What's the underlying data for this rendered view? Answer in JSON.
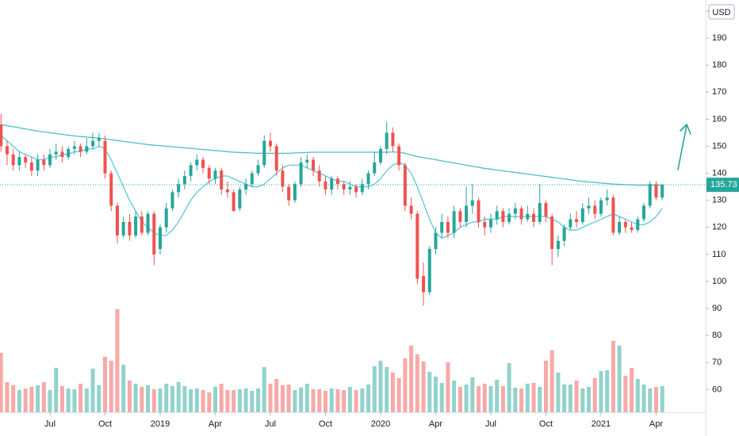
{
  "chart_data": {
    "type": "candlestick",
    "currency": "USD",
    "up_color": "#26a69a",
    "down_color": "#ef5350",
    "xlim": [
      -0.16,
      115.1
    ],
    "xticks": [
      {
        "value": 8,
        "label": "Jul"
      },
      {
        "value": 17,
        "label": "Oct"
      },
      {
        "value": 26,
        "label": "2019"
      },
      {
        "value": 35,
        "label": "Apr"
      },
      {
        "value": 44,
        "label": "Jul"
      },
      {
        "value": 53,
        "label": "Oct"
      },
      {
        "value": 62,
        "label": "2020"
      },
      {
        "value": 71,
        "label": "Apr"
      },
      {
        "value": 80,
        "label": "Jul"
      },
      {
        "value": 89,
        "label": "Oct"
      },
      {
        "value": 98,
        "label": "2021"
      },
      {
        "value": 107,
        "label": "Apr"
      }
    ],
    "ylim": [
      51.6,
      204.1
    ],
    "yticks": [
      60,
      70,
      80,
      90,
      100,
      110,
      120,
      130,
      140,
      150,
      160,
      170,
      180,
      190,
      200
    ],
    "open": [
      158,
      150,
      147,
      143,
      146,
      144,
      141,
      145,
      143,
      147,
      148,
      146,
      149,
      150,
      148,
      150,
      152,
      152,
      140,
      128,
      117,
      122,
      117,
      124,
      118,
      125,
      112,
      120,
      127,
      133,
      136,
      139,
      143,
      145,
      142,
      138,
      141,
      134,
      133,
      127,
      134,
      136,
      140,
      143,
      152,
      150,
      141,
      135,
      130,
      136,
      144,
      145,
      141,
      137,
      134,
      138,
      136,
      134,
      135,
      133,
      136,
      140,
      144,
      149,
      155,
      150,
      143,
      128,
      125,
      102,
      96,
      112,
      118,
      122,
      118,
      126,
      122,
      128,
      130,
      122,
      120,
      123,
      126,
      122,
      125,
      127,
      123,
      125,
      122,
      129,
      124,
      112,
      115,
      120,
      123,
      122,
      127,
      128,
      125,
      130,
      131,
      118,
      122,
      120,
      119,
      123,
      128,
      136,
      131
    ],
    "high": [
      162,
      152,
      149,
      148,
      147,
      146,
      147,
      147,
      149,
      151,
      150,
      150,
      152,
      151,
      153,
      155,
      155,
      154,
      141,
      129,
      124,
      125,
      126,
      126,
      126,
      126,
      121,
      129,
      134,
      138,
      141,
      144,
      147,
      146,
      143,
      142,
      142,
      137,
      134,
      135,
      138,
      141,
      145,
      154,
      155,
      151,
      143,
      136,
      137,
      146,
      147,
      146,
      143,
      139,
      139,
      139,
      137,
      137,
      136,
      138,
      141,
      148,
      150,
      159,
      157,
      151,
      144,
      131,
      126,
      107,
      113,
      120,
      125,
      124,
      128,
      127,
      135,
      136,
      131,
      124,
      125,
      128,
      127,
      127,
      129,
      128,
      128,
      127,
      136,
      130,
      125,
      117,
      121,
      125,
      126,
      129,
      131,
      130,
      131,
      134,
      132,
      124,
      123,
      122,
      124,
      129,
      137,
      137,
      136
    ],
    "low": [
      148,
      143,
      141,
      141,
      142,
      139,
      139,
      141,
      142,
      145,
      144,
      145,
      147,
      146,
      147,
      149,
      150,
      138,
      126,
      114,
      116,
      115,
      116,
      117,
      117,
      106,
      110,
      118,
      126,
      131,
      134,
      137,
      141,
      140,
      136,
      136,
      132,
      131,
      126,
      126,
      132,
      135,
      139,
      142,
      148,
      139,
      133,
      128,
      129,
      135,
      142,
      139,
      135,
      132,
      132,
      134,
      132,
      132,
      131,
      132,
      134,
      139,
      143,
      147,
      148,
      141,
      126,
      123,
      99,
      91,
      95,
      110,
      116,
      116,
      116,
      120,
      120,
      125,
      120,
      117,
      118,
      121,
      120,
      121,
      123,
      121,
      122,
      120,
      121,
      122,
      106,
      109,
      113,
      119,
      120,
      121,
      125,
      123,
      124,
      128,
      117,
      117,
      118,
      118,
      118,
      122,
      127,
      130,
      130
    ],
    "close": [
      150,
      147,
      143,
      146,
      144,
      141,
      145,
      143,
      147,
      148,
      146,
      149,
      150,
      148,
      150,
      152,
      153,
      140,
      128,
      117,
      122,
      117,
      124,
      118,
      125,
      110,
      120,
      127,
      133,
      136,
      139,
      143,
      145,
      142,
      138,
      141,
      134,
      133,
      126,
      134,
      136,
      140,
      143,
      152,
      150,
      141,
      135,
      130,
      136,
      144,
      145,
      141,
      137,
      134,
      138,
      136,
      134,
      135,
      133,
      136,
      140,
      144,
      149,
      155,
      150,
      143,
      128,
      125,
      101,
      96,
      112,
      118,
      122,
      118,
      126,
      122,
      128,
      130,
      122,
      120,
      123,
      126,
      122,
      125,
      127,
      123,
      125,
      122,
      129,
      124,
      112,
      115,
      120,
      123,
      122,
      127,
      128,
      125,
      130,
      131,
      118,
      122,
      120,
      119,
      123,
      128,
      136,
      131,
      135.73
    ],
    "volume": [
      7.5,
      3.8,
      3.4,
      2.8,
      3.0,
      3.2,
      3.4,
      3.8,
      2.8,
      5.6,
      3.3,
      3.0,
      2.9,
      3.6,
      3.0,
      5.5,
      3.4,
      7.0,
      6.5,
      13.0,
      6.0,
      4.0,
      3.6,
      3.2,
      3.4,
      2.9,
      3.0,
      3.6,
      3.3,
      3.8,
      3.3,
      2.9,
      3.0,
      2.8,
      2.5,
      3.2,
      3.6,
      2.8,
      2.8,
      2.9,
      3.0,
      2.7,
      3.0,
      5.7,
      3.6,
      4.2,
      3.4,
      3.5,
      2.8,
      3.1,
      3.6,
      2.9,
      2.9,
      2.7,
      3.0,
      2.9,
      2.8,
      3.2,
      2.8,
      3.0,
      3.5,
      5.8,
      6.5,
      5.7,
      5.0,
      4.3,
      6.8,
      8.4,
      7.3,
      6.4,
      5.1,
      4.5,
      3.7,
      6.3,
      4.0,
      3.2,
      3.5,
      4.4,
      3.3,
      3.6,
      3.3,
      4.1,
      3.3,
      6.2,
      3.1,
      3.0,
      3.6,
      3.7,
      3.2,
      6.5,
      7.8,
      5.0,
      3.5,
      3.5,
      4.0,
      3.0,
      3.2,
      4.3,
      5.2,
      5.3,
      9.0,
      8.4,
      4.6,
      5.6,
      4.2,
      3.5,
      3.0,
      3.2,
      3.3
    ],
    "lines": [
      {
        "color": "#4cbfc6",
        "values": [
          158,
          157.6,
          157.2,
          156.8,
          156.4,
          156,
          155.6,
          155.3,
          155,
          154.7,
          154.4,
          154.1,
          153.8,
          153.6,
          153.4,
          153.2,
          153,
          152.7,
          152.4,
          152.1,
          151.8,
          151.5,
          151.2,
          150.9,
          150.6,
          150.4,
          150.2,
          150,
          149.8,
          149.6,
          149.4,
          149.2,
          149,
          148.8,
          148.6,
          148.4,
          148.2,
          148,
          147.8,
          147.7,
          147.6,
          147.5,
          147.4,
          147.4,
          147.4,
          147.4,
          147.4,
          147.4,
          147.5,
          147.6,
          147.7,
          147.8,
          147.8,
          147.8,
          147.8,
          147.8,
          147.8,
          147.8,
          147.8,
          147.8,
          147.8,
          147.8,
          147.8,
          147.8,
          147.9,
          147.8,
          147.4,
          146.8,
          146.2,
          145.8,
          145.4,
          145,
          144.6,
          144.2,
          143.8,
          143.4,
          143,
          142.6,
          142.2,
          141.8,
          141.5,
          141.2,
          140.9,
          140.6,
          140.3,
          140,
          139.7,
          139.4,
          139.1,
          138.8,
          138.5,
          138.2,
          137.9,
          137.6,
          137.3,
          137,
          136.8,
          136.6,
          136.4,
          136.2,
          136,
          135.9,
          135.8,
          135.7,
          135.6,
          135.6,
          135.6,
          135.6,
          135.6
        ]
      },
      {
        "color": "#5ac8de",
        "values": [
          154,
          152,
          150,
          148,
          147,
          146,
          145,
          145,
          146,
          146,
          147,
          147,
          148,
          148,
          149,
          149,
          150,
          149,
          145,
          140,
          135,
          130,
          126,
          122,
          120,
          118,
          117,
          117,
          119,
          122,
          126,
          130,
          133,
          135,
          137,
          138,
          139,
          139,
          138,
          137,
          136,
          135,
          135,
          136,
          138,
          140,
          142,
          143,
          143,
          143,
          142,
          141,
          140,
          139,
          138,
          137,
          137,
          136,
          135,
          135,
          135,
          136,
          138,
          141,
          143,
          144,
          143,
          140,
          135,
          129,
          123,
          118,
          116,
          117,
          118,
          120,
          121,
          122,
          122,
          123,
          123,
          123,
          124,
          124,
          124,
          124,
          124,
          124,
          124,
          124,
          123,
          122,
          120,
          119,
          119,
          120,
          121,
          122,
          123,
          124,
          125,
          124,
          123,
          122,
          121,
          121,
          122,
          124,
          127
        ]
      }
    ]
  }
}
